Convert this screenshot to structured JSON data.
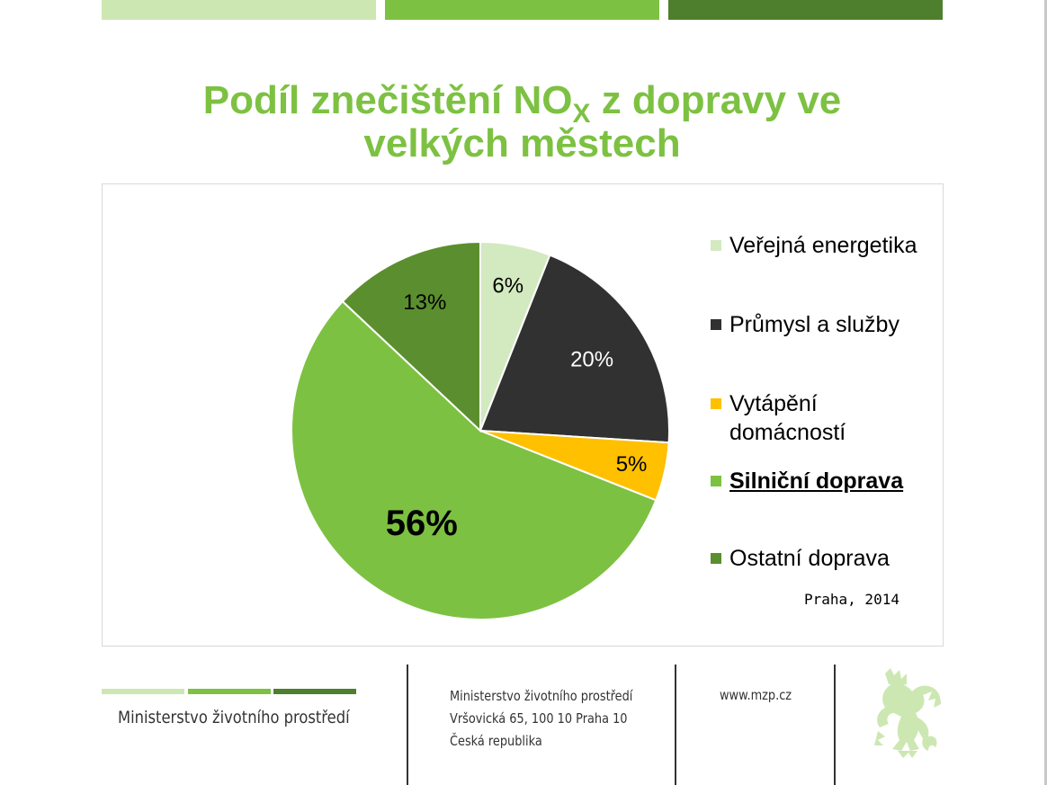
{
  "title": {
    "part1": "Podíl znečištění NO",
    "subscript": "X",
    "part2": " z dopravy ve",
    "line2": "velkých městech"
  },
  "colors": {
    "title": "#7dc142",
    "bar_light": "#cde7b3",
    "bar_mid": "#7dc142",
    "bar_dark": "#4e7f2c"
  },
  "chart_data": {
    "type": "pie",
    "slices": [
      {
        "name": "Veřejná energetika",
        "value": 6,
        "label": "6%",
        "color": "#d3eac0"
      },
      {
        "name": "Průmysl a služby",
        "value": 20,
        "label": "20%",
        "color": "#313131"
      },
      {
        "name": "Vytápění domácností",
        "value": 5,
        "label": "5%",
        "color": "#ffc000"
      },
      {
        "name": "Silniční doprava",
        "value": 56,
        "label": "56%",
        "color": "#7dc142"
      },
      {
        "name": "Ostatní doprava",
        "value": 13,
        "label": "13%",
        "color": "#5b8e2e"
      }
    ],
    "legend": [
      "Veřejná energetika",
      "Průmysl a služby",
      "Vytápění domácností",
      "Silniční doprava",
      "Ostatní doprava"
    ],
    "legend_position": "right",
    "highlighted": "Silniční doprava",
    "source": "Praha, 2014"
  },
  "footer": {
    "ministry": "Ministerstvo životního prostředí",
    "address": [
      "Ministerstvo životního prostředí",
      "Vršovická 65, 100 10  Praha 10",
      "Česká republika"
    ],
    "web": "www.mzp.cz",
    "emblem_icon": "czech-lion-emblem"
  }
}
